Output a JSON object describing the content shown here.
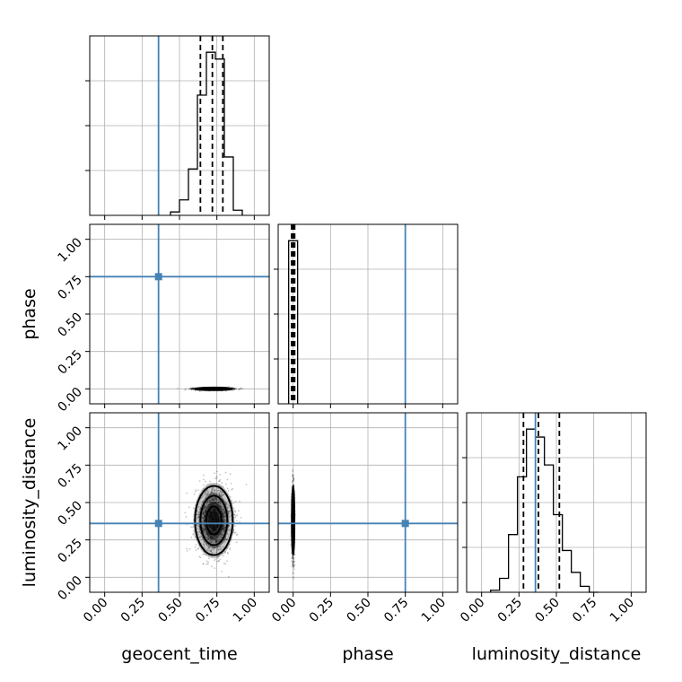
{
  "chart_data": {
    "type": "corner",
    "parameters": [
      "geocent_time",
      "phase",
      "luminosity_distance"
    ],
    "axis_range": [
      -0.1,
      1.1
    ],
    "ticks": [
      0.0,
      0.25,
      0.5,
      0.75,
      1.0
    ],
    "tick_labels": [
      "0.00",
      "0.25",
      "0.50",
      "0.75",
      "1.00"
    ],
    "grid": true,
    "truths": {
      "geocent_time": 0.36,
      "phase": 0.75,
      "luminosity_distance": 0.36
    },
    "truth_color": "#4682b4",
    "marginals": [
      {
        "parameter": "geocent_time",
        "bin_edges": [
          0.44,
          0.5,
          0.56,
          0.62,
          0.68,
          0.74,
          0.8,
          0.86,
          0.92
        ],
        "counts": [
          2,
          9,
          27,
          70,
          95,
          91,
          34,
          3
        ],
        "quantiles": [
          0.64,
          0.72,
          0.79
        ]
      },
      {
        "parameter": "phase",
        "bin_edges": [
          -0.03,
          0.0,
          0.03
        ],
        "counts": [
          100,
          100
        ],
        "quantiles": [
          -0.01,
          0.0,
          0.01
        ]
      },
      {
        "parameter": "luminosity_distance",
        "bin_edges": [
          0.06,
          0.12,
          0.18,
          0.24,
          0.3,
          0.36,
          0.42,
          0.48,
          0.54,
          0.6,
          0.66,
          0.72,
          0.78
        ],
        "counts": [
          1,
          7,
          29,
          58,
          82,
          78,
          64,
          39,
          21,
          10,
          3,
          0
        ],
        "quantiles": [
          0.28,
          0.38,
          0.52
        ]
      }
    ],
    "joint": [
      {
        "x": "geocent_time",
        "y": "phase",
        "center": [
          0.73,
          0.0
        ],
        "sigma": [
          0.06,
          0.004
        ]
      },
      {
        "x": "geocent_time",
        "y": "luminosity_distance",
        "center": [
          0.73,
          0.38
        ],
        "sigma": [
          0.06,
          0.11
        ]
      },
      {
        "x": "phase",
        "y": "luminosity_distance",
        "center": [
          0.0,
          0.38
        ],
        "sigma": [
          0.004,
          0.11
        ]
      }
    ]
  }
}
